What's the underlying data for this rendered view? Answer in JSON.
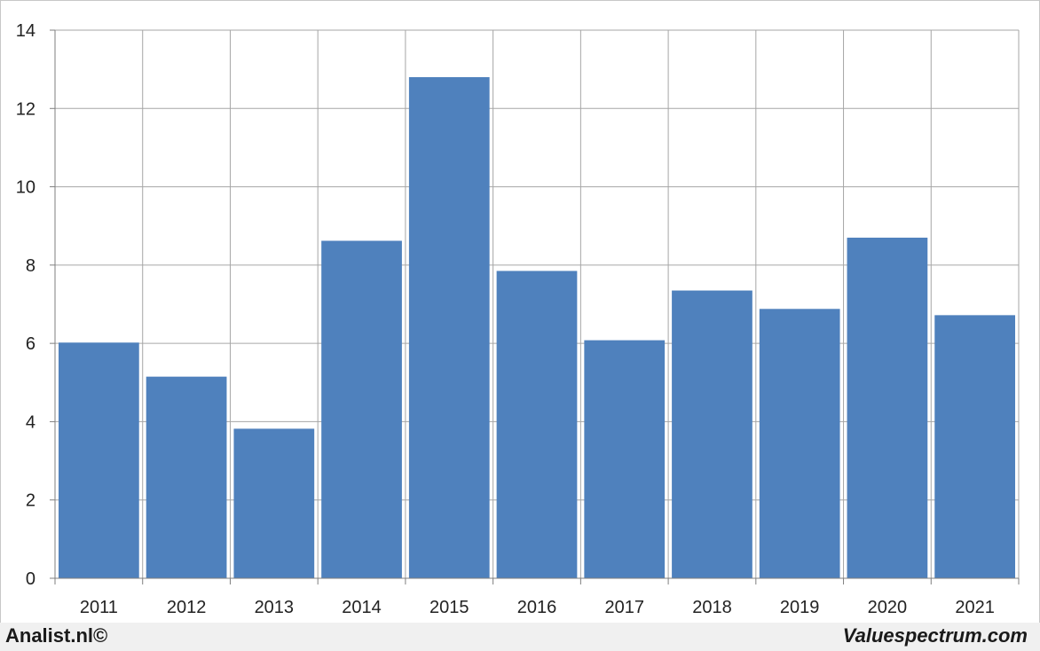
{
  "chart_data": {
    "type": "bar",
    "title": "",
    "xlabel": "",
    "ylabel": "",
    "categories": [
      "2011",
      "2012",
      "2013",
      "2014",
      "2015",
      "2016",
      "2017",
      "2018",
      "2019",
      "2020",
      "2021"
    ],
    "values": [
      6.02,
      5.15,
      3.82,
      8.62,
      12.8,
      7.85,
      6.08,
      7.35,
      6.88,
      8.7,
      6.72
    ],
    "ylim": [
      0,
      14
    ],
    "yticks": [
      0,
      2,
      4,
      6,
      8,
      10,
      12,
      14
    ],
    "grid": true,
    "bar_color": "#4f81bd",
    "grid_color": "#a6a6a6"
  },
  "footer": {
    "left": "Analist.nl©",
    "right": "Valuespectrum.com"
  }
}
